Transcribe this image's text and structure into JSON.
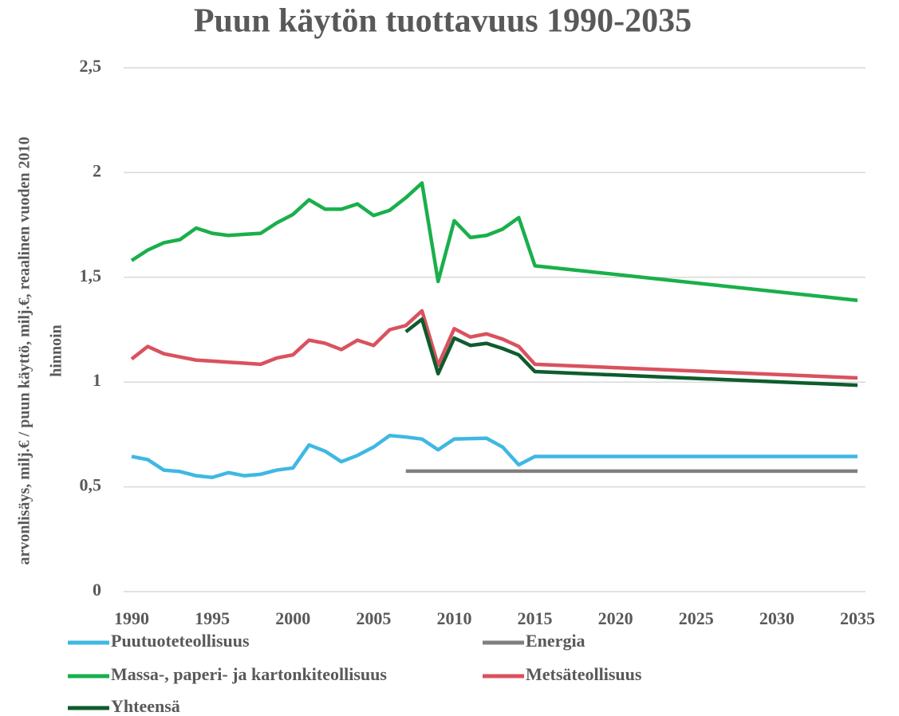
{
  "chart_data": {
    "type": "line",
    "title": "Puun käytön tuottavuus 1990-2035",
    "ylabel": [
      "arvonlisäys, milj.€ / puun käyttö, milj.€, reaalinen vuoden 2010",
      "hinnoin"
    ],
    "x": [
      1990,
      1991,
      1992,
      1993,
      1994,
      1995,
      1996,
      1997,
      1998,
      1999,
      2000,
      2001,
      2002,
      2003,
      2004,
      2005,
      2006,
      2007,
      2008,
      2009,
      2010,
      2011,
      2012,
      2013,
      2014,
      2015,
      2035
    ],
    "xlim": [
      1990,
      2035
    ],
    "xticks": [
      1990,
      1995,
      2000,
      2005,
      2010,
      2015,
      2020,
      2025,
      2030,
      2035
    ],
    "ylim": [
      0,
      2.5
    ],
    "yticks": [
      0,
      {
        "value": 0.5,
        "label": "0,5"
      },
      1,
      {
        "value": 1.5,
        "label": "1,5"
      },
      2,
      {
        "value": 2.5,
        "label": "2,5"
      }
    ],
    "grid": true,
    "series": [
      {
        "name": "Puutuoteteollisuus",
        "color": "#3fb8e2",
        "values": [
          0.645,
          0.63,
          0.58,
          0.573,
          0.553,
          0.545,
          0.568,
          0.553,
          0.56,
          0.58,
          0.59,
          0.7,
          0.67,
          0.62,
          0.65,
          0.69,
          0.745,
          0.738,
          0.728,
          0.677,
          0.728,
          0.73,
          0.732,
          0.69,
          0.605,
          0.645,
          0.645
        ]
      },
      {
        "name": "Energia",
        "color": "#808080",
        "values": [
          null,
          null,
          null,
          null,
          null,
          null,
          null,
          null,
          null,
          null,
          null,
          null,
          null,
          null,
          null,
          null,
          null,
          0.575,
          0.575,
          0.575,
          0.575,
          0.575,
          0.575,
          0.575,
          0.575,
          0.575,
          0.575
        ]
      },
      {
        "name": "Massa-, paperi- ja kartonkiteollisuus",
        "color": "#1aaf4b",
        "values": [
          1.58,
          1.63,
          1.665,
          1.68,
          1.735,
          1.71,
          1.7,
          1.705,
          1.71,
          1.76,
          1.8,
          1.87,
          1.825,
          1.825,
          1.85,
          1.795,
          1.82,
          1.88,
          1.95,
          1.48,
          1.77,
          1.69,
          1.7,
          1.73,
          1.785,
          1.555,
          1.39
        ]
      },
      {
        "name": "Metsäteollisuus",
        "color": "#d9525e",
        "values": [
          1.11,
          1.17,
          1.135,
          1.12,
          1.105,
          1.1,
          1.095,
          1.09,
          1.085,
          1.115,
          1.13,
          1.2,
          1.185,
          1.155,
          1.2,
          1.175,
          1.25,
          1.27,
          1.34,
          1.08,
          1.255,
          1.215,
          1.23,
          1.205,
          1.17,
          1.085,
          1.02
        ]
      },
      {
        "name": "Yhteensä",
        "color": "#0e5c2d",
        "values": [
          null,
          null,
          null,
          null,
          null,
          null,
          null,
          null,
          null,
          null,
          null,
          null,
          null,
          null,
          null,
          null,
          null,
          1.24,
          1.3,
          1.04,
          1.21,
          1.175,
          1.185,
          1.16,
          1.13,
          1.05,
          0.985
        ]
      }
    ]
  }
}
